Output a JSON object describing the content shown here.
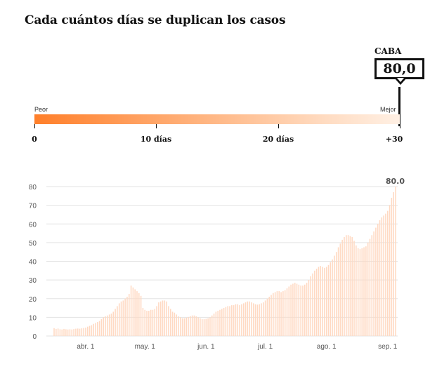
{
  "title": "Cada cuántos días se duplican los casos",
  "region": "CABA",
  "current_value": "80,0",
  "scale": {
    "low_label": "Peor",
    "high_label": "Mejor",
    "ticks": [
      "0",
      "10 días",
      "20 días",
      "+30"
    ]
  },
  "colors": {
    "accent": "#ff7f2a",
    "bar": "#ffd9c2",
    "grid": "#e3e3e3"
  },
  "chart_data": {
    "type": "bar",
    "title": "",
    "xlabel": "",
    "ylabel": "",
    "ylim": [
      0,
      80
    ],
    "yticks": [
      "80",
      "70",
      "60",
      "50",
      "40",
      "30",
      "20",
      "10",
      "0"
    ],
    "x_tick_labels": [
      "abr. 1",
      "may. 1",
      "jun. 1",
      "jul. 1",
      "ago. 1",
      "sep. 1"
    ],
    "end_label": "80.0",
    "start_date": "2020-03-16",
    "values": [
      4.2,
      3.8,
      4,
      3.6,
      3.5,
      3.8,
      3.6,
      3.5,
      3.6,
      3.5,
      3.7,
      3.9,
      4,
      3.9,
      4.1,
      4.3,
      4.5,
      5,
      5.4,
      5.8,
      6.5,
      7,
      7.5,
      8,
      9,
      10,
      10.5,
      11,
      11.5,
      12,
      13,
      14.5,
      16,
      17.5,
      18.5,
      19,
      20,
      21,
      22.5,
      27,
      26,
      25,
      24,
      23,
      21.5,
      15,
      14,
      13.5,
      13.5,
      14,
      14,
      14.5,
      16,
      18,
      18.5,
      19,
      19,
      18.5,
      16,
      14.5,
      13,
      12.5,
      11.5,
      10.5,
      10,
      9.5,
      9.5,
      9.8,
      10.2,
      10.6,
      11,
      11,
      10.5,
      10,
      9.5,
      9,
      9,
      9.2,
      9.5,
      10,
      11,
      12,
      13,
      13.5,
      14,
      14.5,
      15,
      15.5,
      16,
      16,
      16.5,
      16.5,
      17,
      17,
      16.5,
      17,
      17.5,
      18,
      18.5,
      18.5,
      18,
      17.5,
      17,
      16.8,
      17,
      17.5,
      18,
      19,
      20,
      21,
      22,
      23,
      23.5,
      24,
      24,
      23.5,
      24,
      24.5,
      25.5,
      26.5,
      27.5,
      28,
      28.5,
      28,
      27.5,
      27,
      27,
      27.5,
      28.5,
      30,
      32,
      33.5,
      35,
      36,
      37,
      37.5,
      37,
      36.5,
      37,
      38,
      39.5,
      41,
      43,
      45,
      47.5,
      49.5,
      51.5,
      53,
      54,
      54,
      53.5,
      53,
      51,
      48.5,
      47,
      46.5,
      47,
      47.5,
      48,
      50,
      52,
      54,
      56,
      58,
      60,
      62,
      63.5,
      64.5,
      65.5,
      67,
      70,
      74,
      77,
      80
    ]
  }
}
